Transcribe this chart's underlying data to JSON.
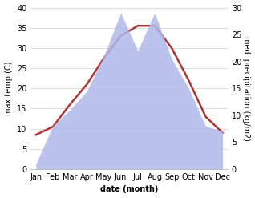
{
  "months": [
    "Jan",
    "Feb",
    "Mar",
    "Apr",
    "May",
    "Jun",
    "Jul",
    "Aug",
    "Sep",
    "Oct",
    "Nov",
    "Dec"
  ],
  "temperature": [
    8.5,
    10.5,
    16.0,
    21.0,
    27.5,
    33.0,
    35.5,
    35.5,
    30.0,
    22.0,
    13.0,
    9.0
  ],
  "precipitation": [
    1.0,
    8.0,
    11.0,
    14.5,
    21.0,
    29.0,
    22.0,
    29.0,
    20.5,
    15.0,
    8.0,
    7.0
  ],
  "temp_color": "#b03535",
  "precip_color": "#b0b8e8",
  "temp_ylim": [
    0,
    40
  ],
  "precip_ylim": [
    0,
    30
  ],
  "xlabel": "date (month)",
  "ylabel_left": "max temp (C)",
  "ylabel_right": "med. precipitation (kg/m2)",
  "temp_linewidth": 1.8,
  "tick_fontsize": 7,
  "label_fontsize": 7
}
